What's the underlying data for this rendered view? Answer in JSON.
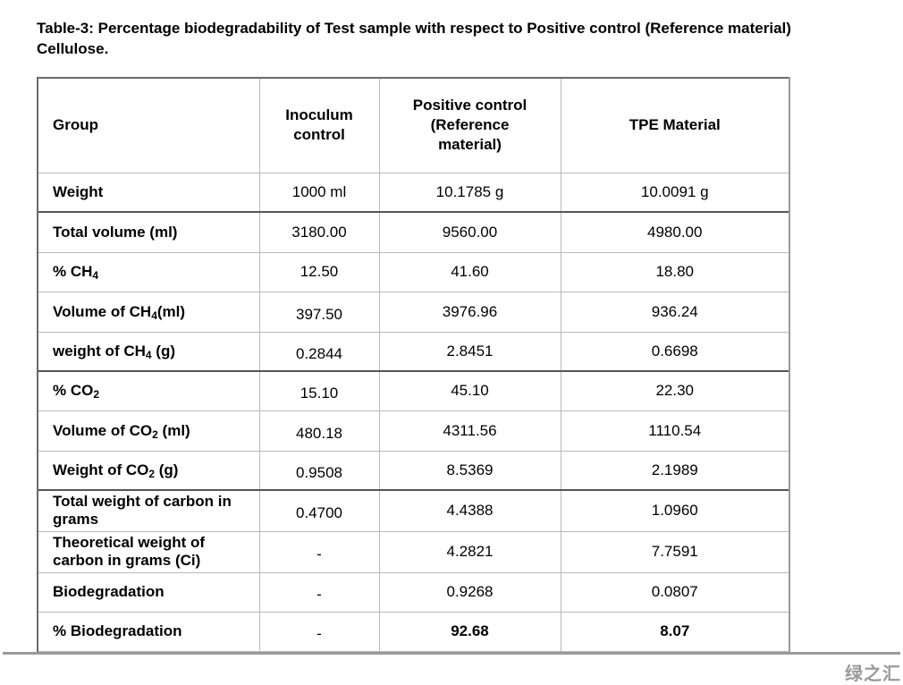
{
  "caption": {
    "line1": "Table-3: Percentage biodegradability of Test sample with respect to Positive control (Reference material)",
    "line2": "Cellulose."
  },
  "table": {
    "headers": [
      "Group",
      "Inoculum control",
      "Positive control (Reference material)",
      "TPE Material"
    ],
    "rows": [
      {
        "label": "Weight",
        "sub": "",
        "suffix": "",
        "values": [
          "1000 ml",
          "10.1785 g",
          "10.0091 g"
        ]
      },
      {
        "label": "Total volume (ml)",
        "sub": "",
        "suffix": "",
        "values": [
          "3180.00",
          "9560.00",
          "4980.00"
        ]
      },
      {
        "label": "% CH",
        "sub": "4",
        "suffix": "",
        "values": [
          "12.50",
          "41.60",
          "18.80"
        ]
      },
      {
        "label": "Volume of CH",
        "sub": "4",
        "suffix": "(ml)",
        "values": [
          "397.50",
          "3976.96",
          "936.24"
        ]
      },
      {
        "label": "weight of CH",
        "sub": "4",
        "suffix": " (g)",
        "values": [
          "0.2844",
          "2.8451",
          "0.6698"
        ]
      },
      {
        "label": "% CO",
        "sub": "2",
        "suffix": "",
        "values": [
          "15.10",
          "45.10",
          "22.30"
        ]
      },
      {
        "label": "Volume of CO",
        "sub": "2",
        "suffix": " (ml)",
        "values": [
          "480.18",
          "4311.56",
          "1110.54"
        ]
      },
      {
        "label": "Weight of CO",
        "sub": "2",
        "suffix": " (g)",
        "values": [
          "0.9508",
          "8.5369",
          "2.1989"
        ]
      },
      {
        "label": "Total weight of carbon in grams",
        "sub": "",
        "suffix": "",
        "values": [
          "0.4700",
          "4.4388",
          "1.0960"
        ]
      },
      {
        "label": "Theoretical weight of carbon in grams (Ci)",
        "sub": "",
        "suffix": "",
        "values": [
          "-",
          "4.2821",
          "7.7591"
        ]
      },
      {
        "label": "Biodegradation",
        "sub": "",
        "suffix": "",
        "values": [
          "-",
          "0.9268",
          "0.0807"
        ]
      },
      {
        "label": "% Biodegradation",
        "sub": "",
        "suffix": "",
        "values": [
          "-",
          "92.68",
          "8.07"
        ]
      }
    ]
  },
  "watermark": "绿之汇"
}
